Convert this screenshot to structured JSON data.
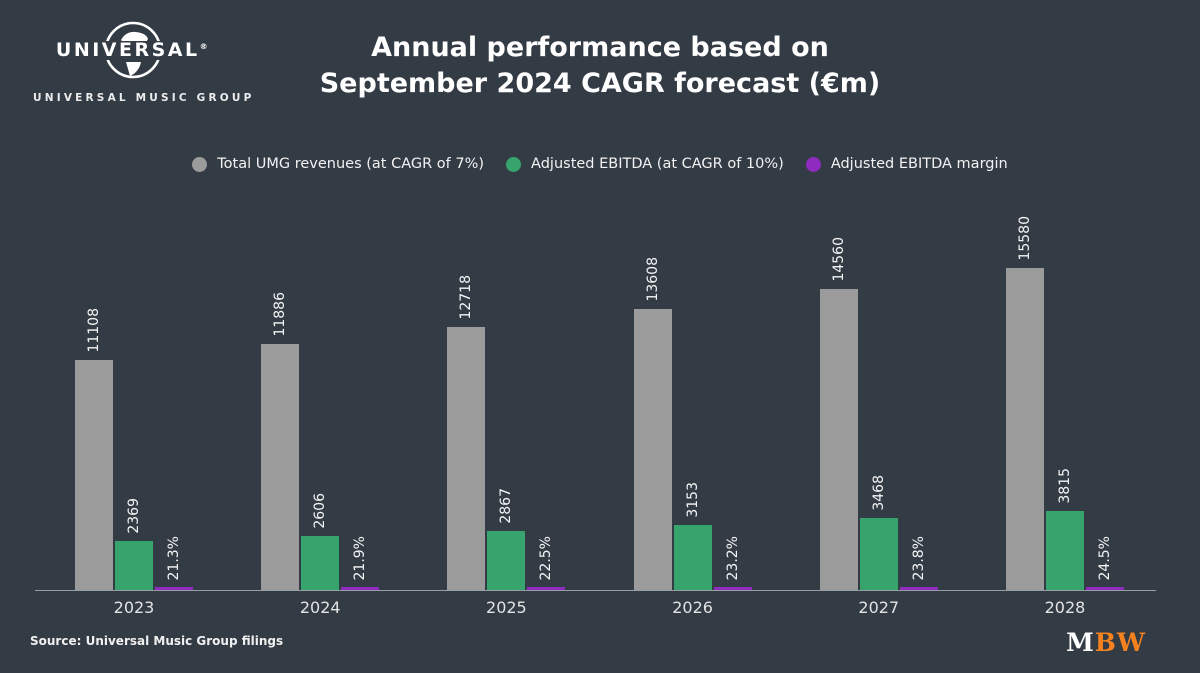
{
  "page": {
    "background": "#333b45"
  },
  "header": {
    "logo": {
      "brand": "UNIVERSAL",
      "registered": "®",
      "subtitle": "UNIVERSAL MUSIC GROUP"
    },
    "title_line1": "Annual performance based on",
    "title_line2": "September 2024 CAGR forecast (€m)"
  },
  "legend": [
    {
      "label": "Total UMG revenues (at CAGR of 7%)",
      "color": "#9b9b9b"
    },
    {
      "label": "Adjusted EBITDA (at CAGR of 10%)",
      "color": "#36a46c"
    },
    {
      "label": "Adjusted EBITDA margin",
      "color": "#8f2bbf"
    }
  ],
  "chart_data": {
    "type": "bar",
    "title": "Annual performance based on September 2024 CAGR forecast (€m)",
    "categories": [
      "2023",
      "2024",
      "2025",
      "2026",
      "2027",
      "2028"
    ],
    "series": [
      {
        "name": "Total UMG revenues (at CAGR of 7%)",
        "color": "#9b9b9b",
        "values": [
          11108,
          11886,
          12718,
          13608,
          14560,
          15580
        ]
      },
      {
        "name": "Adjusted EBITDA (at CAGR of 10%)",
        "color": "#36a46c",
        "values": [
          2369,
          2606,
          2867,
          3153,
          3468,
          3815
        ]
      },
      {
        "name": "Adjusted EBITDA margin",
        "color": "#8f2bbf",
        "unit": "%",
        "values": [
          21.3,
          21.9,
          22.5,
          23.2,
          23.8,
          24.5
        ],
        "labels": [
          "21.3%",
          "21.9%",
          "22.5%",
          "23.2%",
          "23.8%",
          "24.5%"
        ]
      }
    ],
    "ylim": [
      0,
      16500
    ],
    "grid": false,
    "legend_position": "top",
    "value_labels": "rotated-90-above-bars"
  },
  "footer": {
    "source": "Source: Universal Music Group filings",
    "logo_m": "M",
    "logo_bw": "BW",
    "logo_bw_color": "#f5821f"
  }
}
